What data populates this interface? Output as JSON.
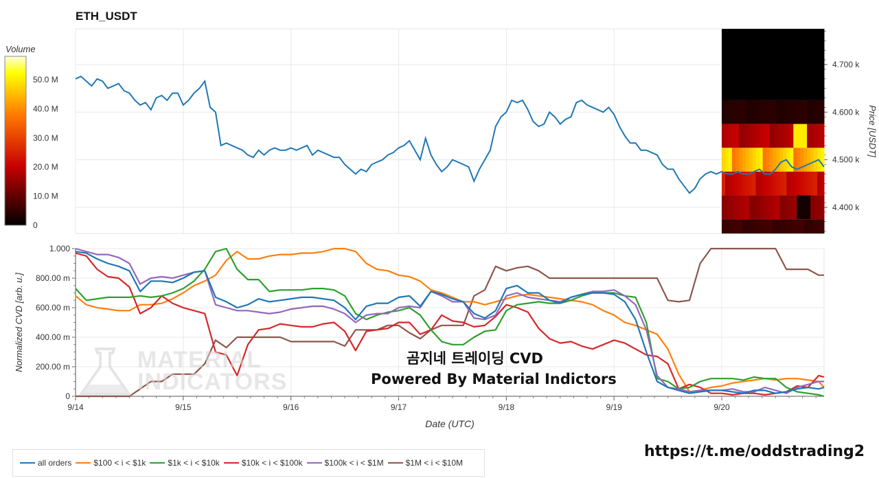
{
  "title": "ETH_USDT",
  "link_text": "https://t.me/oddstrading2",
  "overlay": {
    "line1": "곰지네 트레이딩 CVD",
    "line2": "Powered By Material Indictors"
  },
  "watermark": {
    "line1": "MATERIAL",
    "line2": "INDICATORS"
  },
  "colors": {
    "all_orders": "#1f77b4",
    "s100_1k": "#ff7f0e",
    "s1k_10k": "#2ca02c",
    "s10k_100k": "#d62728",
    "s100k_1m": "#9467bd",
    "s1m_10m": "#8c564b"
  },
  "colorbar": {
    "title": "Volume",
    "ticks": [
      "0",
      "10.0 M",
      "20.0 M",
      "30.0 M",
      "40.0 M",
      "50.0 M"
    ],
    "tick_values": [
      0,
      10,
      20,
      30,
      40,
      50
    ],
    "max": 58
  },
  "chart_data": [
    {
      "type": "line",
      "title": "ETH_USDT",
      "ylabel": "Price [USDT]",
      "y_ticks": [
        "4.400 k",
        "4.500 k",
        "4.600 k",
        "4.700 k"
      ],
      "y_tick_values": [
        4400,
        4500,
        4600,
        4700
      ],
      "ylim": [
        4345,
        4775
      ],
      "x_ticks": [
        "9/14",
        "9/15",
        "9/16",
        "9/17",
        "9/18",
        "9/19",
        "9/20"
      ],
      "xlim": [
        14.0,
        20.95
      ],
      "series": [
        {
          "name": "Price",
          "x": [
            14.0,
            14.05,
            14.1,
            14.15,
            14.2,
            14.25,
            14.3,
            14.35,
            14.4,
            14.45,
            14.5,
            14.55,
            14.6,
            14.65,
            14.7,
            14.75,
            14.8,
            14.85,
            14.9,
            14.95,
            15.0,
            15.05,
            15.1,
            15.15,
            15.2,
            15.25,
            15.3,
            15.35,
            15.4,
            15.45,
            15.5,
            15.55,
            15.6,
            15.65,
            15.7,
            15.75,
            15.8,
            15.85,
            15.9,
            15.95,
            16.0,
            16.05,
            16.1,
            16.15,
            16.2,
            16.25,
            16.3,
            16.35,
            16.4,
            16.45,
            16.5,
            16.55,
            16.6,
            16.65,
            16.7,
            16.75,
            16.8,
            16.85,
            16.9,
            16.95,
            17.0,
            17.05,
            17.1,
            17.15,
            17.2,
            17.25,
            17.3,
            17.35,
            17.4,
            17.45,
            17.5,
            17.55,
            17.6,
            17.65,
            17.7,
            17.75,
            17.8,
            17.85,
            17.9,
            17.95,
            18.0,
            18.05,
            18.1,
            18.15,
            18.2,
            18.25,
            18.3,
            18.35,
            18.4,
            18.45,
            18.5,
            18.55,
            18.6,
            18.65,
            18.7,
            18.75,
            18.8,
            18.85,
            18.9,
            18.95,
            19.0,
            19.05,
            19.1,
            19.15,
            19.2,
            19.25,
            19.3,
            19.35,
            19.4,
            19.45,
            19.5,
            19.55,
            19.6,
            19.65,
            19.7,
            19.75,
            19.8,
            19.85,
            19.9,
            19.95,
            20.0,
            20.05,
            20.1,
            20.15,
            20.2,
            20.25,
            20.3,
            20.35,
            20.4,
            20.45,
            20.5,
            20.55,
            20.6,
            20.65,
            20.7,
            20.75,
            20.8,
            20.85,
            20.9,
            20.95
          ],
          "y": [
            4670,
            4675,
            4665,
            4655,
            4670,
            4665,
            4650,
            4655,
            4660,
            4645,
            4640,
            4625,
            4615,
            4620,
            4605,
            4630,
            4635,
            4625,
            4640,
            4640,
            4615,
            4625,
            4640,
            4650,
            4665,
            4610,
            4600,
            4530,
            4535,
            4530,
            4525,
            4520,
            4510,
            4505,
            4520,
            4510,
            4520,
            4525,
            4520,
            4520,
            4525,
            4520,
            4525,
            4530,
            4510,
            4520,
            4515,
            4510,
            4505,
            4505,
            4490,
            4480,
            4470,
            4480,
            4475,
            4490,
            4495,
            4500,
            4510,
            4515,
            4525,
            4530,
            4540,
            4520,
            4500,
            4545,
            4510,
            4490,
            4475,
            4485,
            4500,
            4495,
            4490,
            4485,
            4455,
            4480,
            4500,
            4520,
            4570,
            4590,
            4600,
            4625,
            4620,
            4625,
            4605,
            4580,
            4570,
            4575,
            4600,
            4590,
            4575,
            4585,
            4590,
            4620,
            4625,
            4615,
            4610,
            4605,
            4600,
            4610,
            4595,
            4570,
            4550,
            4535,
            4535,
            4520,
            4520,
            4515,
            4510,
            4490,
            4480,
            4480,
            4460,
            4445,
            4430,
            4440,
            4460,
            4470,
            4475,
            4470,
            4475,
            4470,
            4470,
            4475,
            4470,
            4470,
            4475,
            4480,
            4470,
            4470,
            4480,
            4495,
            4500,
            4485,
            4480,
            4485,
            4490,
            4495,
            4500,
            4485
          ]
        }
      ],
      "heatmap": {
        "x_start": 20.0,
        "price_bands": [
          4775,
          4625,
          4575,
          4525,
          4475,
          4425,
          4375,
          4345
        ],
        "band_volume": [
          0,
          4,
          18,
          45,
          22,
          16,
          6
        ],
        "description_levels": "higher volume near 4.500 k"
      }
    },
    {
      "type": "line",
      "xlabel": "Date (UTC)",
      "ylabel": "Normalized CVD [arb. u.]",
      "y_ticks": [
        "0",
        "200.00 m",
        "400.00 m",
        "600.00 m",
        "800.00 m",
        "1.000"
      ],
      "y_tick_values": [
        0,
        0.2,
        0.4,
        0.6,
        0.8,
        1.0
      ],
      "ylim": [
        0,
        1.0
      ],
      "x_ticks": [
        "9/14",
        "9/15",
        "9/16",
        "9/17",
        "9/18",
        "9/19",
        "9/20"
      ],
      "xlim": [
        14.0,
        20.95
      ],
      "x": [
        14.0,
        14.1,
        14.2,
        14.3,
        14.4,
        14.5,
        14.6,
        14.7,
        14.8,
        14.9,
        15.0,
        15.1,
        15.2,
        15.3,
        15.4,
        15.5,
        15.6,
        15.7,
        15.8,
        15.9,
        16.0,
        16.1,
        16.2,
        16.3,
        16.4,
        16.5,
        16.6,
        16.7,
        16.8,
        16.9,
        17.0,
        17.1,
        17.2,
        17.3,
        17.4,
        17.5,
        17.6,
        17.7,
        17.8,
        17.9,
        18.0,
        18.1,
        18.2,
        18.3,
        18.4,
        18.5,
        18.6,
        18.7,
        18.8,
        18.9,
        19.0,
        19.1,
        19.2,
        19.3,
        19.4,
        19.5,
        19.6,
        19.7,
        19.8,
        19.9,
        20.0,
        20.1,
        20.2,
        20.3,
        20.4,
        20.5,
        20.6,
        20.7,
        20.8,
        20.9,
        20.95
      ],
      "series": [
        {
          "name": "all orders",
          "y": [
            0.98,
            0.97,
            0.93,
            0.9,
            0.88,
            0.85,
            0.71,
            0.78,
            0.78,
            0.77,
            0.8,
            0.84,
            0.85,
            0.67,
            0.64,
            0.6,
            0.62,
            0.66,
            0.64,
            0.65,
            0.66,
            0.67,
            0.67,
            0.66,
            0.65,
            0.6,
            0.52,
            0.61,
            0.63,
            0.63,
            0.67,
            0.68,
            0.61,
            0.71,
            0.69,
            0.66,
            0.64,
            0.56,
            0.53,
            0.58,
            0.73,
            0.75,
            0.7,
            0.7,
            0.65,
            0.63,
            0.67,
            0.69,
            0.7,
            0.7,
            0.69,
            0.64,
            0.52,
            0.3,
            0.1,
            0.06,
            0.04,
            0.02,
            0.03,
            0.04,
            0.04,
            0.03,
            0.02,
            0.04,
            0.04,
            0.02,
            0.03,
            0.05,
            0.06,
            0.05,
            0.06
          ]
        },
        {
          "name": "$100 < i < $1k",
          "y": [
            0.68,
            0.62,
            0.6,
            0.59,
            0.58,
            0.58,
            0.62,
            0.62,
            0.63,
            0.66,
            0.7,
            0.75,
            0.78,
            0.82,
            0.92,
            0.98,
            0.93,
            0.93,
            0.95,
            0.96,
            0.96,
            0.97,
            0.97,
            0.98,
            1.0,
            1.0,
            0.98,
            0.9,
            0.86,
            0.85,
            0.82,
            0.81,
            0.78,
            0.72,
            0.7,
            0.67,
            0.64,
            0.64,
            0.62,
            0.64,
            0.66,
            0.68,
            0.69,
            0.68,
            0.67,
            0.66,
            0.65,
            0.64,
            0.62,
            0.58,
            0.55,
            0.5,
            0.48,
            0.45,
            0.42,
            0.32,
            0.15,
            0.03,
            0.04,
            0.06,
            0.07,
            0.09,
            0.1,
            0.11,
            0.12,
            0.11,
            0.12,
            0.12,
            0.11,
            0.1,
            0.06
          ]
        },
        {
          "name": "$1k < i < $10k",
          "y": [
            0.73,
            0.65,
            0.66,
            0.67,
            0.67,
            0.67,
            0.68,
            0.67,
            0.68,
            0.7,
            0.73,
            0.78,
            0.86,
            0.98,
            1.0,
            0.86,
            0.79,
            0.79,
            0.71,
            0.72,
            0.72,
            0.72,
            0.73,
            0.73,
            0.72,
            0.68,
            0.56,
            0.52,
            0.55,
            0.57,
            0.58,
            0.6,
            0.55,
            0.45,
            0.37,
            0.35,
            0.35,
            0.4,
            0.44,
            0.45,
            0.58,
            0.62,
            0.63,
            0.64,
            0.63,
            0.63,
            0.65,
            0.68,
            0.7,
            0.7,
            0.7,
            0.68,
            0.67,
            0.5,
            0.12,
            0.1,
            0.05,
            0.06,
            0.1,
            0.12,
            0.12,
            0.12,
            0.11,
            0.13,
            0.12,
            0.12,
            0.06,
            0.03,
            0.02,
            0.01,
            0.0
          ]
        },
        {
          "name": "$10k < i < $100k",
          "y": [
            0.97,
            0.95,
            0.86,
            0.81,
            0.8,
            0.74,
            0.56,
            0.6,
            0.68,
            0.63,
            0.6,
            0.58,
            0.56,
            0.3,
            0.28,
            0.14,
            0.35,
            0.45,
            0.46,
            0.49,
            0.48,
            0.47,
            0.47,
            0.49,
            0.5,
            0.44,
            0.31,
            0.44,
            0.45,
            0.46,
            0.5,
            0.5,
            0.42,
            0.45,
            0.55,
            0.51,
            0.5,
            0.47,
            0.48,
            0.54,
            0.62,
            0.6,
            0.57,
            0.46,
            0.39,
            0.36,
            0.37,
            0.34,
            0.32,
            0.35,
            0.38,
            0.36,
            0.32,
            0.28,
            0.27,
            0.22,
            0.05,
            0.08,
            0.06,
            0.02,
            0.02,
            0.01,
            0.02,
            0.02,
            0.01,
            0.02,
            0.03,
            0.07,
            0.06,
            0.14,
            0.13
          ]
        },
        {
          "name": "$100k < i < $1M",
          "y": [
            1.0,
            0.98,
            0.96,
            0.96,
            0.94,
            0.9,
            0.76,
            0.8,
            0.81,
            0.8,
            0.82,
            0.84,
            0.85,
            0.62,
            0.6,
            0.58,
            0.58,
            0.57,
            0.56,
            0.57,
            0.59,
            0.6,
            0.61,
            0.61,
            0.59,
            0.56,
            0.5,
            0.55,
            0.56,
            0.56,
            0.6,
            0.61,
            0.6,
            0.71,
            0.68,
            0.64,
            0.64,
            0.53,
            0.52,
            0.55,
            0.68,
            0.7,
            0.67,
            0.66,
            0.65,
            0.64,
            0.67,
            0.69,
            0.71,
            0.71,
            0.72,
            0.68,
            0.62,
            0.45,
            0.14,
            0.06,
            0.05,
            0.03,
            0.04,
            0.04,
            0.04,
            0.05,
            0.03,
            0.03,
            0.06,
            0.04,
            0.02,
            0.06,
            0.08,
            0.1,
            0.1
          ]
        },
        {
          "name": "$1M < i < $10M",
          "y": [
            0.0,
            0.0,
            0.0,
            0.0,
            0.0,
            0.0,
            0.05,
            0.1,
            0.1,
            0.15,
            0.15,
            0.15,
            0.22,
            0.38,
            0.33,
            0.4,
            0.4,
            0.4,
            0.4,
            0.4,
            0.37,
            0.37,
            0.37,
            0.37,
            0.37,
            0.34,
            0.45,
            0.45,
            0.45,
            0.48,
            0.48,
            0.43,
            0.39,
            0.45,
            0.48,
            0.48,
            0.48,
            0.68,
            0.72,
            0.88,
            0.85,
            0.87,
            0.88,
            0.85,
            0.8,
            0.8,
            0.8,
            0.8,
            0.8,
            0.8,
            0.8,
            0.8,
            0.8,
            0.8,
            0.8,
            0.65,
            0.64,
            0.65,
            0.9,
            1.0,
            1.0,
            1.0,
            1.0,
            1.0,
            1.0,
            1.0,
            0.86,
            0.86,
            0.86,
            0.82,
            0.82
          ]
        }
      ]
    }
  ]
}
